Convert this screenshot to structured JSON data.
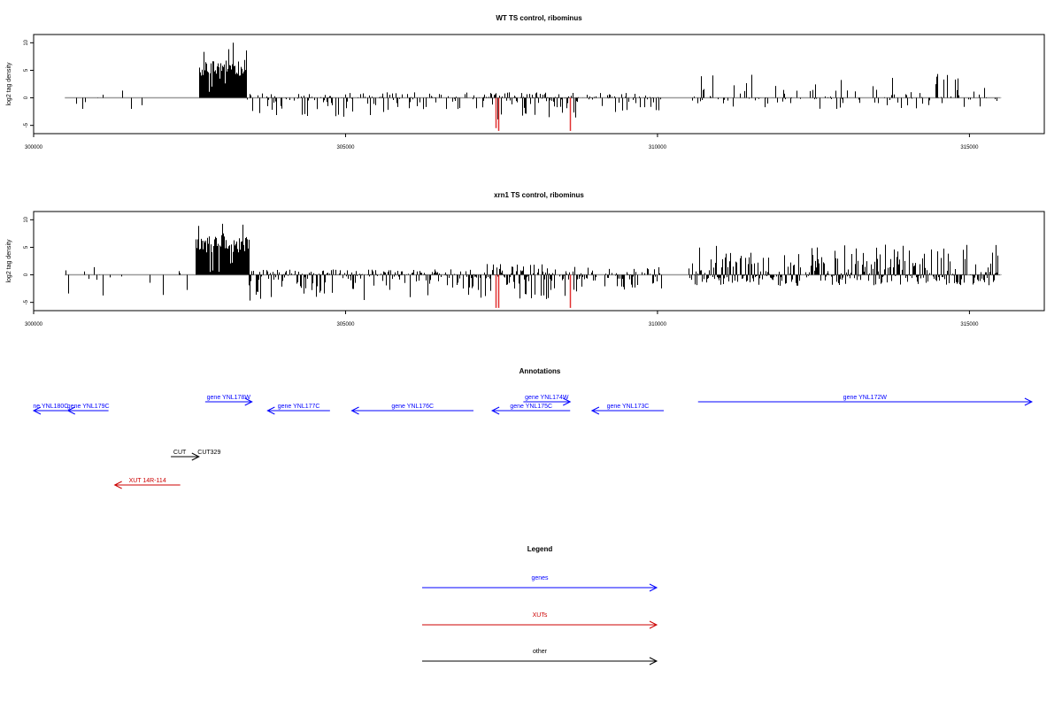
{
  "colors": {
    "gene": "#0000ff",
    "xut": "#cc0000",
    "other": "#000000",
    "red_bar": "#e03030",
    "bar": "#000000",
    "baseline": "#999999"
  },
  "chart_data": [
    {
      "type": "bar",
      "title": "WT TS control, ribominus",
      "xlabel": "",
      "ylabel": "log2 tag density",
      "xlim": [
        300000,
        316200
      ],
      "ylim": [
        -6.5,
        11.5
      ],
      "x_ticks": [
        300000,
        305000,
        310000,
        315000
      ],
      "x_tick_labels": [
        "300000",
        "305000",
        "310000",
        "315000"
      ],
      "y_ticks": [
        -5,
        0,
        5,
        10
      ],
      "y_tick_labels": [
        "-5",
        "0",
        "5",
        "10"
      ],
      "baseline_range": [
        300500,
        315500
      ],
      "grid": false,
      "legend": "none",
      "segments": [
        {
          "start": 300500,
          "end": 302600,
          "lo": -2.5,
          "hi": 2.5,
          "density": 0.1
        },
        {
          "start": 302650,
          "end": 303400,
          "lo": 0.5,
          "hi": 11,
          "density": 1.0,
          "core": [
            4,
            7
          ]
        },
        {
          "start": 303400,
          "end": 307200,
          "lo": -3.5,
          "hi": 1,
          "density": 0.5
        },
        {
          "start": 307200,
          "end": 308700,
          "lo": -4,
          "hi": 1,
          "density": 0.8
        },
        {
          "start": 308700,
          "end": 310100,
          "lo": -3,
          "hi": 1,
          "density": 0.45
        },
        {
          "start": 310450,
          "end": 315500,
          "lo": -2,
          "hi": 4.5,
          "density": 0.3
        }
      ],
      "highlight_bars": [
        {
          "x": 307400,
          "y": -5.5
        },
        {
          "x": 307450,
          "y": -6
        },
        {
          "x": 308600,
          "y": -6
        }
      ]
    },
    {
      "type": "bar",
      "title": "xrn1 TS control, ribominus",
      "xlabel": "",
      "ylabel": "log2 tag density",
      "xlim": [
        300000,
        316200
      ],
      "ylim": [
        -6.5,
        11.5
      ],
      "x_ticks": [
        300000,
        305000,
        310000,
        315000
      ],
      "x_tick_labels": [
        "300000",
        "305000",
        "310000",
        "315000"
      ],
      "y_ticks": [
        -5,
        0,
        5,
        10
      ],
      "y_tick_labels": [
        "-5",
        "0",
        "5",
        "10"
      ],
      "baseline_range": [
        300500,
        315500
      ],
      "grid": false,
      "legend": "none",
      "segments": [
        {
          "start": 300500,
          "end": 302600,
          "lo": -4,
          "hi": 2,
          "density": 0.12
        },
        {
          "start": 302600,
          "end": 303450,
          "lo": 0.5,
          "hi": 10.5,
          "density": 1.0,
          "core": [
            4,
            7
          ]
        },
        {
          "start": 303450,
          "end": 307200,
          "lo": -5,
          "hi": 1,
          "density": 0.85
        },
        {
          "start": 307200,
          "end": 308700,
          "lo": -4.5,
          "hi": 2,
          "density": 0.8
        },
        {
          "start": 308700,
          "end": 310100,
          "lo": -3.5,
          "hi": 1.5,
          "density": 0.6
        },
        {
          "start": 310500,
          "end": 315500,
          "lo": -2,
          "hi": 5.5,
          "density": 0.9
        }
      ],
      "highlight_bars": [
        {
          "x": 307400,
          "y": -6
        },
        {
          "x": 307450,
          "y": -6
        },
        {
          "x": 308600,
          "y": -6
        }
      ]
    }
  ],
  "annotations": {
    "title": "Annotations",
    "features": [
      {
        "label": "ne YNL180C",
        "type": "gene",
        "start": 300000,
        "end": 300550,
        "strand": "-",
        "row": 0
      },
      {
        "label": "gene YNL179C",
        "type": "gene",
        "start": 300550,
        "end": 301200,
        "strand": "-",
        "row": 0
      },
      {
        "label": "gene YNL178W",
        "type": "gene",
        "start": 302750,
        "end": 303500,
        "strand": "+",
        "row": 1
      },
      {
        "label": "gene YNL177C",
        "type": "gene",
        "start": 303750,
        "end": 304750,
        "strand": "-",
        "row": 0
      },
      {
        "label": "gene YNL176C",
        "type": "gene",
        "start": 305100,
        "end": 307050,
        "strand": "-",
        "row": 0
      },
      {
        "label": "gene YNL175C",
        "type": "gene",
        "start": 307350,
        "end": 308600,
        "strand": "-",
        "row": 0
      },
      {
        "label": "gene YNL174W",
        "type": "gene",
        "start": 307850,
        "end": 308600,
        "strand": "+",
        "row": 1
      },
      {
        "label": "gene YNL173C",
        "type": "gene",
        "start": 308950,
        "end": 310100,
        "strand": "-",
        "row": 0
      },
      {
        "label": "gene YNL172W",
        "type": "gene",
        "start": 310650,
        "end": 316000,
        "strand": "+",
        "row": 1
      },
      {
        "label": "CUT",
        "type": "other",
        "start": 302200,
        "end": 302650,
        "strand": "+",
        "row": 2
      },
      {
        "label": "CUT329",
        "type": "other",
        "start": 302650,
        "end": 302700,
        "strand": "+",
        "row": 2
      },
      {
        "label": "XUT 14R-114",
        "type": "xut",
        "start": 301300,
        "end": 302350,
        "strand": "-",
        "row": 3
      }
    ]
  },
  "legend": {
    "title": "Legend",
    "items": [
      {
        "label": "genes",
        "type": "gene"
      },
      {
        "label": "XUTs",
        "type": "xut"
      },
      {
        "label": "other",
        "type": "other"
      }
    ]
  }
}
